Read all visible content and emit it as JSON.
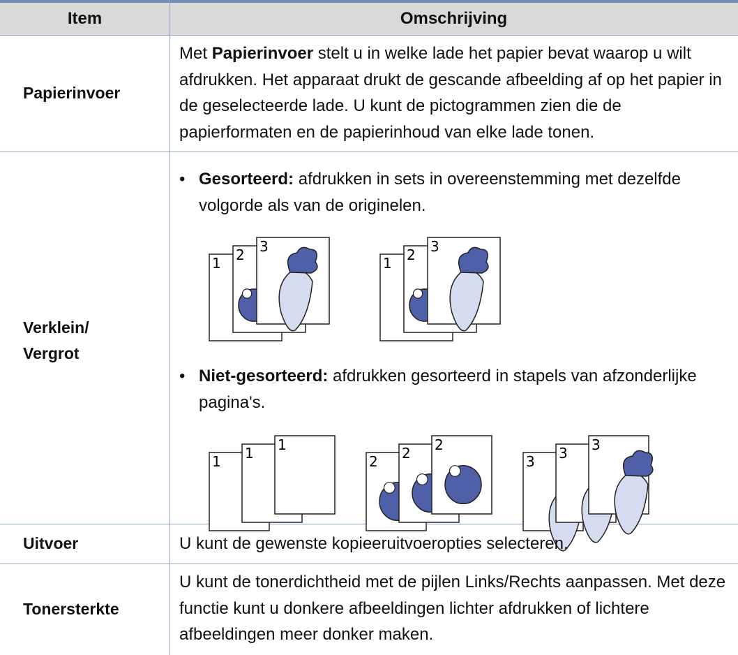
{
  "table": {
    "header": [
      "Item",
      "Omschrijving"
    ],
    "rows": [
      {
        "item": "Papierinvoer",
        "description": [
          "Met ",
          "Papierinvoer",
          " stelt u in welke lade het papier bevat waarop u wilt afdrukken. Het apparaat drukt de gescande afbeelding af op het papier in de geselecteerde lade. U kunt de pictogrammen zien die de papierformaten en de papierinhoud van elke lade tonen."
        ]
      },
      {
        "item": "Verklein/ Vergrot",
        "bullets": [
          {
            "term": "Gesorteerd:",
            "text": " afdrukken in sets in overeenstemming met dezelfde volgorde als van de originelen.",
            "illustration": [
              [
                "1",
                "2",
                "3"
              ],
              [
                "1",
                "2",
                "3"
              ]
            ]
          },
          {
            "term": "Niet-gesorteerd:",
            "text": " afdrukken gesorteerd in stapels van afzonderlijke pagina's.",
            "illustration": [
              [
                "1",
                "1",
                "1"
              ],
              [
                "2",
                "2",
                "2"
              ],
              [
                "3",
                "3",
                "3"
              ]
            ]
          }
        ]
      },
      {
        "item": "Uitvoer",
        "description": [
          "U kunt de gewenste kopieeruitvoeropties selecteren."
        ]
      },
      {
        "item": "Tonersterkte",
        "description": [
          "U kunt de tonerdichtheid met de pijlen Links/Rechts aanpassen. Met deze functie kunt u donkere afbeeldingen lichter afdrukken of lichtere afbeeldingen meer donker maken."
        ]
      }
    ]
  }
}
